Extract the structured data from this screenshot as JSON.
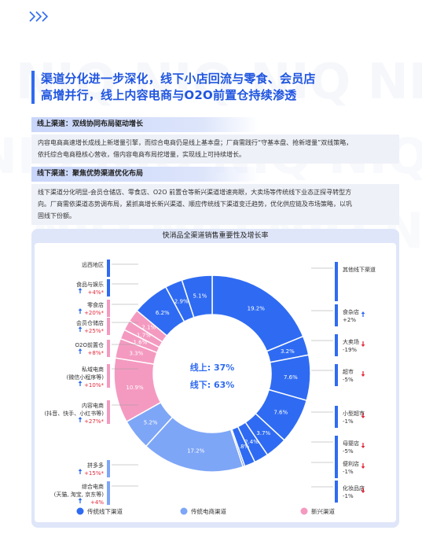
{
  "headline": {
    "line1": "渠道分化进一步深化，线下小店回流与零食、会员店",
    "line2": "高增并行，线上内容电商与O2O前置仓持续渗透"
  },
  "online": {
    "title": "线上渠道：双线协同布局驱动增长",
    "p1": "内容电商高速增长成线上新增量引擎，而综合电商仍是线上基本盘；厂商需践行“守基本盘、抢新增量”双线策略，",
    "p2": "依托综合电商稳核心营收，借内容电商布局挖增量，实现线上可持续增长。"
  },
  "offline": {
    "title": "线下渠道：聚焦优势渠道优化布局",
    "p1": "线下渠道分化明显-会员仓储店、零食店、O2O 前置仓等新兴渠道增速亮眼，大卖场等传统线下业态正探寻转型方",
    "p2": "向。厂商需依渠道态势调布局，紧抓高增长新兴渠道、顺应传统线下渠道变迁趋势，优化供应链及市场策略，以巩",
    "p3": "固线下份额。"
  },
  "chart_data": {
    "type": "pie",
    "title": "快消品全渠道销售重要性及增长率",
    "center": {
      "online": "线上: 37%",
      "offline": "线下: 63%"
    },
    "legend": [
      {
        "label": "传统线下渠道",
        "color": "#2f6bf2"
      },
      {
        "label": "传统电商渠道",
        "color": "#7ea6f7"
      },
      {
        "label": "新兴渠道",
        "color": "#f49ac1"
      }
    ],
    "slices": [
      {
        "name": "其他线下渠道",
        "value": 19.2,
        "label": "19.2%",
        "group": "offline",
        "growth": ""
      },
      {
        "name": "食杂店",
        "value": 3.2,
        "label": "3.2%",
        "group": "offline",
        "growth": "+2%"
      },
      {
        "name": "大卖场",
        "value": 7.6,
        "label": "7.6%",
        "group": "offline",
        "growth": "-19%"
      },
      {
        "name": "超市",
        "value": 7.6,
        "label": "7.6%",
        "group": "offline",
        "growth": "-5%"
      },
      {
        "name": "小型超市",
        "value": 3.7,
        "label": "3.7%",
        "group": "offline",
        "growth": "-1%"
      },
      {
        "name": "母婴店",
        "value": 2.4,
        "label": "2.4%",
        "group": "offline",
        "growth": "-5%"
      },
      {
        "name": "便利店",
        "value": 1.8,
        "label": "1.8%",
        "group": "offline",
        "growth": "-1%"
      },
      {
        "name": "化妆品店",
        "value": 0.3,
        "label": "",
        "group": "offline",
        "growth": "-1%"
      },
      {
        "name": "综合电商(天猫,淘宝,京东等)",
        "value": 17.2,
        "label": "17.2%",
        "group": "ecom",
        "growth": "+4%"
      },
      {
        "name": "拼多多",
        "value": 5.2,
        "label": "5.2%",
        "group": "ecom",
        "growth": "+15%"
      },
      {
        "name": "内容电商(抖音、快手、小红书等)",
        "value": 10.9,
        "label": "10.9%",
        "group": "new",
        "growth": "+27%"
      },
      {
        "name": "私域电商(微信小程序等)",
        "value": 3.3,
        "label": "3.3%",
        "group": "new",
        "growth": "+10%"
      },
      {
        "name": "O2O前置仓",
        "value": 1.6,
        "label": "1.6%",
        "group": "new",
        "growth": "+8%"
      },
      {
        "name": "会员仓储店",
        "value": 1.7,
        "label": "1.7%",
        "group": "new",
        "growth": "+25%"
      },
      {
        "name": "零食店",
        "value": 2.1,
        "label": "2.1%",
        "group": "new",
        "growth": "+20%"
      },
      {
        "name": "食品与娱乐",
        "value": 6.2,
        "label": "6.2%",
        "group": "offline",
        "growth": "+4%"
      },
      {
        "name": "远西地区",
        "value": 2.9,
        "label": "2.9%",
        "group": "offline",
        "growth": ""
      },
      {
        "name": "其他",
        "value": 5.1,
        "label": "5.1%",
        "group": "offline",
        "growth": ""
      }
    ],
    "right_labels": [
      {
        "name": "其他线下渠道",
        "growth": "",
        "dir": ""
      },
      {
        "name": "食杂店",
        "growth": "+2%",
        "dir": "up"
      },
      {
        "name": "大卖场",
        "growth": "-19%",
        "dir": "down"
      },
      {
        "name": "超市",
        "growth": "-5%",
        "dir": "down"
      },
      {
        "name": "小型超市",
        "growth": "-1%",
        "dir": "down"
      },
      {
        "name": "母婴店",
        "growth": "-5%",
        "dir": "down"
      },
      {
        "name": "便利店",
        "growth": "-1%",
        "dir": "down"
      },
      {
        "name": "化妆品店",
        "growth": "-1%",
        "dir": "down"
      }
    ],
    "left_labels": [
      {
        "name1": "远西地区",
        "name2": "",
        "growth": "",
        "dir": ""
      },
      {
        "name1": "食品与娱乐",
        "name2": "",
        "growth": "+4%*",
        "dir": "up"
      },
      {
        "name1": "零食店",
        "name2": "",
        "growth": "+20%*",
        "dir": "up"
      },
      {
        "name1": "会员仓储店",
        "name2": "",
        "growth": "+25%*",
        "dir": "up"
      },
      {
        "name1": "O2O前置仓",
        "name2": "",
        "growth": "+8%*",
        "dir": "up"
      },
      {
        "name1": "私域电商",
        "name2": "(微信小程序等)",
        "growth": "+10%*",
        "dir": "up"
      },
      {
        "name1": "内容电商",
        "name2": "(抖音、快手、小红书等)",
        "growth": "+27%*",
        "dir": "up"
      },
      {
        "name1": "拼多多",
        "name2": "",
        "growth": "+15%*",
        "dir": "up"
      },
      {
        "name1": "综合电商",
        "name2": "(天猫, 淘宝, 京东等)",
        "growth": "+4%",
        "dir": "up"
      }
    ],
    "colors": {
      "up": "#2f6bf2",
      "down": "#e5283a",
      "growth_text": "#e5283a",
      "offline": "#2f6bf2",
      "ecom": "#7ea6f7",
      "new": "#f49ac1",
      "center": "#2f6bf2"
    }
  }
}
